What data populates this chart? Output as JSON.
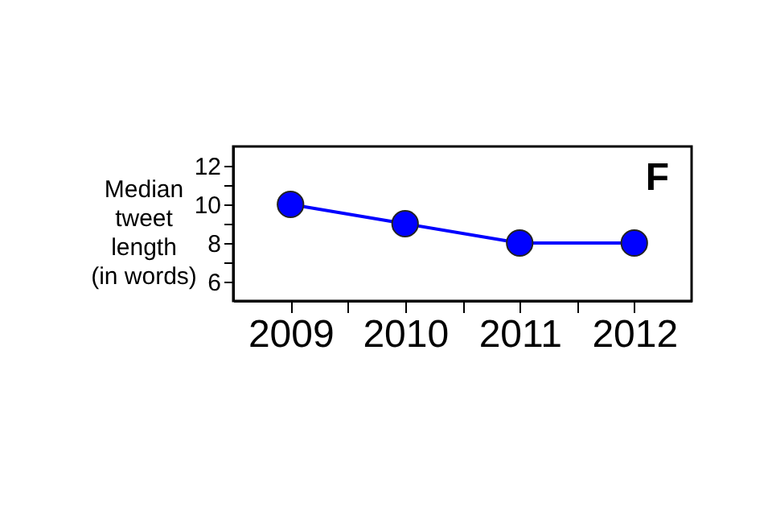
{
  "chart_data": {
    "type": "line",
    "ylabel": "Median\ntweet\nlength\n(in words)",
    "x": [
      2009,
      2010,
      2011,
      2012
    ],
    "series": [
      {
        "color": "#0000ff",
        "values": [
          10,
          9,
          8,
          8
        ]
      }
    ],
    "xlim": [
      2008.5,
      2012.5
    ],
    "xticks": [
      2009,
      {
        "value": 2009.5,
        "label": null
      },
      2010,
      {
        "value": 2010.5,
        "label": null
      },
      2011,
      {
        "value": 2011.5,
        "label": null
      },
      2012
    ],
    "ylim": [
      5,
      13
    ],
    "yticks": [
      6,
      {
        "value": 7,
        "label": null
      },
      8,
      {
        "value": 9,
        "label": null
      },
      10,
      {
        "value": 11,
        "label": null
      },
      12
    ],
    "marker": "circle",
    "line_style": "solid",
    "grid": false,
    "annotations": [
      "F"
    ]
  }
}
